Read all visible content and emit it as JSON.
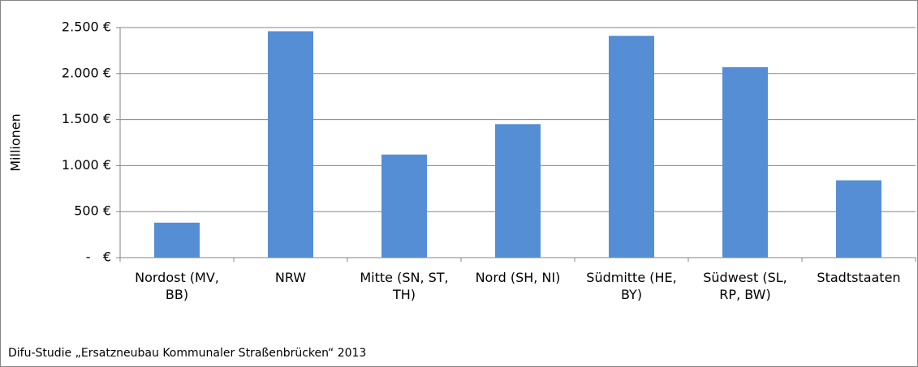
{
  "chart_data": {
    "type": "bar",
    "y_label": "Millionen",
    "source": "Difu-Studie „Ersatzneubau Kommunaler Straßenbrücken“ 2013",
    "categories": [
      "Nordost (MV, BB)",
      "NRW",
      "Mitte (SN, ST, TH)",
      "Nord (SH, NI)",
      "Südmitte (HE, BY)",
      "Südwest (SL, RP, BW)",
      "Stadtstaaten"
    ],
    "values": [
      380,
      2460,
      1120,
      1450,
      2410,
      2070,
      840
    ],
    "color": "#558ed5",
    "ylim": [
      0,
      2500
    ],
    "yticks": [
      {
        "value": 0,
        "label": "-   €"
      },
      {
        "value": 500,
        "label": "500 €"
      },
      {
        "value": 1000,
        "label": "1.000 €"
      },
      {
        "value": 1500,
        "label": "1.500 €"
      },
      {
        "value": 2000,
        "label": "2.000 €"
      },
      {
        "value": 2500,
        "label": "2.500 €"
      }
    ],
    "grid": true
  }
}
